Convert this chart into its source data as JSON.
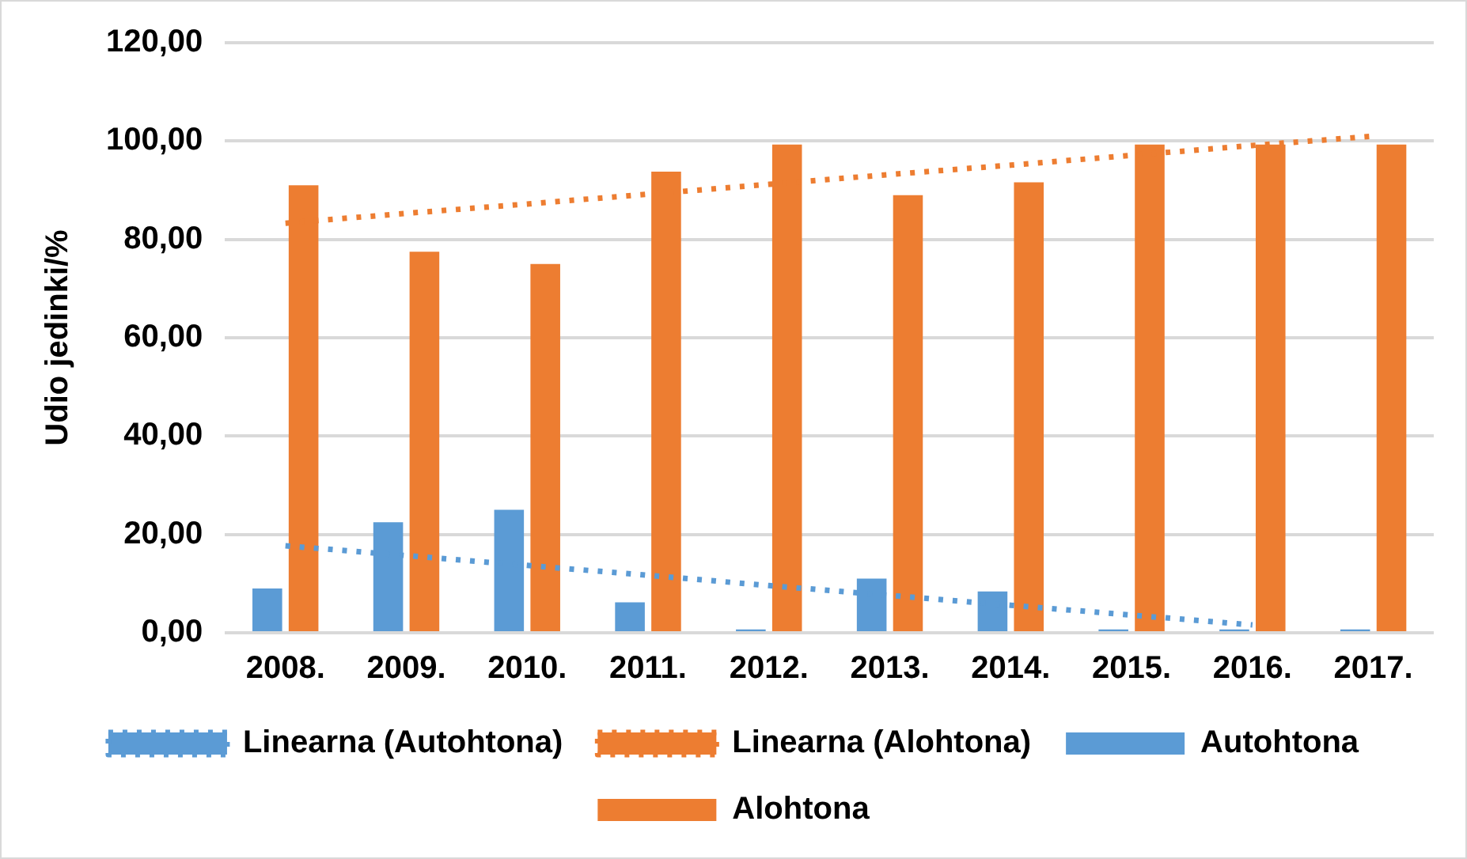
{
  "chart_data": {
    "type": "bar",
    "ylabel": "Udio jedinki/%",
    "categories": [
      "2008.",
      "2009.",
      "2010.",
      "2011.",
      "2012.",
      "2013.",
      "2014.",
      "2015.",
      "2016.",
      "2017."
    ],
    "series": [
      {
        "name": "Autohtona",
        "color": "#5b9bd5",
        "values": [
          9,
          22.5,
          25,
          6.2,
          0.7,
          11,
          8.4,
          0.7,
          0.7,
          0.7
        ]
      },
      {
        "name": "Alohtona",
        "color": "#ed7d31",
        "values": [
          91,
          77.5,
          75,
          93.8,
          99.3,
          89,
          91.6,
          99.3,
          99.3,
          99.3
        ]
      },
      {
        "name": "Linearna (Autohtona)",
        "type": "line",
        "line_style": "dotted",
        "color": "#5b9bd5",
        "values": [
          17.7,
          15.7,
          13.7,
          11.7,
          9.6,
          7.6,
          5.6,
          3.6,
          1.6,
          null
        ]
      },
      {
        "name": "Linearna (Alohtona)",
        "type": "line",
        "line_style": "dotted",
        "color": "#ed7d31",
        "values": [
          83.3,
          85.3,
          87.2,
          89.2,
          91.2,
          93.2,
          95.1,
          97.1,
          99.1,
          101
        ]
      }
    ],
    "ylim": [
      0,
      120
    ],
    "yticks": [
      {
        "value": 0,
        "label": "0,00"
      },
      {
        "value": 20,
        "label": "20,00"
      },
      {
        "value": 40,
        "label": "40,00"
      },
      {
        "value": 60,
        "label": "60,00"
      },
      {
        "value": 80,
        "label": "80,00"
      },
      {
        "value": 100,
        "label": "100,00"
      },
      {
        "value": 120,
        "label": "120,00"
      }
    ],
    "grid": "y",
    "marker": "none",
    "legend": "bottom"
  }
}
